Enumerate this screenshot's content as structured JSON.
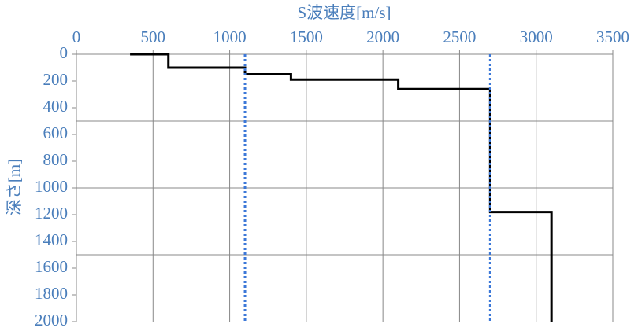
{
  "chart_data": {
    "type": "line",
    "title": "S波速度[m/s]",
    "y_label": "深さ[m]",
    "xlim": [
      0,
      3500
    ],
    "xticks": [
      0,
      500,
      1000,
      1500,
      2000,
      2500,
      3000,
      3500
    ],
    "ylim": [
      0,
      2000
    ],
    "yticks": [
      0,
      200,
      400,
      600,
      800,
      1000,
      1200,
      1400,
      1600,
      1800,
      2000
    ],
    "y_inverted": true,
    "ygrid": [
      500,
      1000,
      1500
    ],
    "series": [
      {
        "color": "#000000",
        "style": "solid",
        "x": [
          350,
          600,
          600,
          1100,
          1100,
          1400,
          1400,
          2100,
          2100,
          2700,
          2700,
          3100,
          3100
        ],
        "y": [
          0,
          0,
          100,
          100,
          150,
          150,
          190,
          190,
          260,
          260,
          1180,
          1180,
          2000
        ]
      },
      {
        "color": "#3c78d8",
        "style": "dotted",
        "x": [
          1100,
          1100
        ],
        "y": [
          0,
          2000
        ]
      },
      {
        "color": "#3c78d8",
        "style": "dotted",
        "x": [
          2700,
          2700
        ],
        "y": [
          0,
          2000
        ]
      }
    ]
  }
}
